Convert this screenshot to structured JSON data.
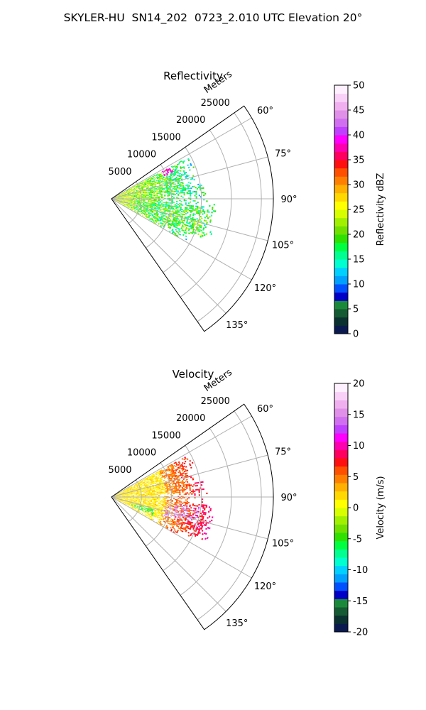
{
  "figure": {
    "title": "SKYLER-HU  SN14_202  0723_2.010 UTC Elevation 20°"
  },
  "chart_data": [
    {
      "type": "polar-sector",
      "title": "Reflectivity",
      "radial_label": "Meters",
      "radial_ticks": [
        5000,
        10000,
        15000,
        20000,
        25000
      ],
      "radial_lim": [
        0,
        27000
      ],
      "azimuth_range_deg": [
        55,
        145
      ],
      "angle_ticks": [
        60,
        75,
        90,
        105,
        120,
        135
      ],
      "angle_tick_labels": [
        "60°",
        "75°",
        "90°",
        "105°",
        "120°",
        "135°"
      ],
      "grid": true,
      "field": "reflectivity",
      "data_extent": {
        "azimuth_deg": [
          60,
          120
        ],
        "range_m": [
          0,
          17500
        ],
        "notes": "Scattered echoes mostly 10–25 dBZ; small core near 35–40 dBZ around azimuth 63°, range ~10000 m"
      },
      "colorbar": {
        "label": "Reflectivity dBZ",
        "range": [
          0,
          50
        ],
        "ticks": [
          0,
          5,
          10,
          15,
          20,
          25,
          30,
          35,
          40,
          45,
          50
        ],
        "colors": [
          "#0a1a50",
          "#0a3030",
          "#145a32",
          "#1a8a3a",
          "#0000c8",
          "#0050ff",
          "#00a0ff",
          "#00d0ff",
          "#00ffd0",
          "#00ff90",
          "#00ff40",
          "#30e000",
          "#70e000",
          "#a0f000",
          "#d8ff00",
          "#ffff00",
          "#ffd800",
          "#ffb000",
          "#ff8000",
          "#ff5000",
          "#ff1010",
          "#ff0060",
          "#ff00b0",
          "#ff00ff",
          "#c040ff",
          "#d070f0",
          "#e090e8",
          "#f0b0f0",
          "#f8d0f8",
          "#fff0ff"
        ]
      }
    },
    {
      "type": "polar-sector",
      "title": "Velocity",
      "radial_label": "Meters",
      "radial_ticks": [
        5000,
        10000,
        15000,
        20000,
        25000
      ],
      "radial_lim": [
        0,
        27000
      ],
      "azimuth_range_deg": [
        55,
        145
      ],
      "angle_ticks": [
        60,
        75,
        90,
        105,
        120,
        135
      ],
      "angle_tick_labels": [
        "60°",
        "75°",
        "90°",
        "105°",
        "120°",
        "135°"
      ],
      "grid": true,
      "field": "velocity",
      "data_extent": {
        "azimuth_deg": [
          60,
          120
        ],
        "range_m": [
          0,
          17500
        ],
        "notes": "Mostly 0–5 m/s near radar, 5–12 m/s beyond ~10000 m, 12–18 m/s patches near 100–105°, -5 to -8 m/s near 110°"
      },
      "colorbar": {
        "label": "Velocity (m/s)",
        "range": [
          -20,
          20
        ],
        "ticks": [
          -20,
          -15,
          -10,
          -5,
          0,
          5,
          10,
          15,
          20
        ],
        "colors": [
          "#0a1a50",
          "#0a3030",
          "#145a32",
          "#1a8a3a",
          "#0000c8",
          "#0050ff",
          "#00a0ff",
          "#00d0ff",
          "#00ffd0",
          "#00ff90",
          "#00ff40",
          "#30e000",
          "#70e000",
          "#a0f000",
          "#d8ff00",
          "#ffff00",
          "#ffd800",
          "#ffb000",
          "#ff8000",
          "#ff5000",
          "#ff1010",
          "#ff0060",
          "#ff00b0",
          "#ff00ff",
          "#c040ff",
          "#d070f0",
          "#e090e8",
          "#f0b0f0",
          "#f8d0f8",
          "#fff0ff"
        ]
      }
    }
  ]
}
